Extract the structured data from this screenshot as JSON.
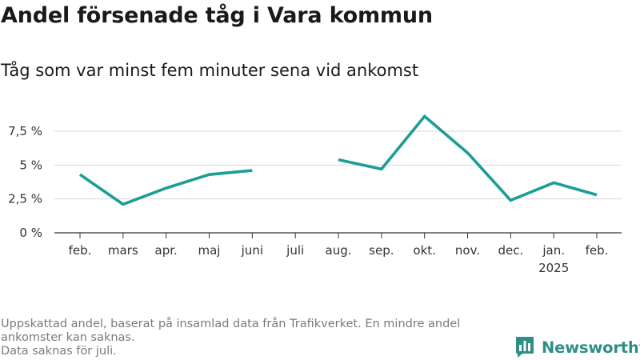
{
  "header": {
    "title": "Andel försenade tåg i Vara kommun",
    "subtitle": "Tåg som var minst fem minuter sena vid ankomst"
  },
  "chart_data": {
    "type": "line",
    "title": "Andel försenade tåg i Vara kommun",
    "subtitle": "Tåg som var minst fem minuter sena vid ankomst",
    "xlabel": "",
    "ylabel": "",
    "categories": [
      "feb.",
      "mars",
      "apr.",
      "maj",
      "juni",
      "juli",
      "aug.",
      "sep.",
      "okt.",
      "nov.",
      "dec.",
      "jan.",
      "feb."
    ],
    "category_sublabels": [
      "",
      "",
      "",
      "",
      "",
      "",
      "",
      "",
      "",
      "",
      "",
      "2025",
      ""
    ],
    "series": [
      {
        "values": [
          4.3,
          2.1,
          3.3,
          4.3,
          4.6,
          null,
          5.4,
          4.7,
          8.6,
          5.9,
          2.4,
          3.7,
          2.8
        ],
        "color": "#1a9e96"
      }
    ],
    "y_ticks": [
      0,
      2.5,
      5,
      7.5
    ],
    "y_tick_labels": [
      "0 %",
      "2,5 %",
      "5 %",
      "7,5 %"
    ],
    "ylim": [
      0,
      8.8
    ],
    "grid": true,
    "legend": "none"
  },
  "footer": {
    "note_line1": "Uppskattad andel, baserat på insamlad data från Trafikverket. En mindre andel",
    "note_line2": "ankomster kan saknas.",
    "note_line3": "Data saknas för juli.",
    "logo_text": "Newsworthy",
    "logo_color": "#2f8f86"
  }
}
